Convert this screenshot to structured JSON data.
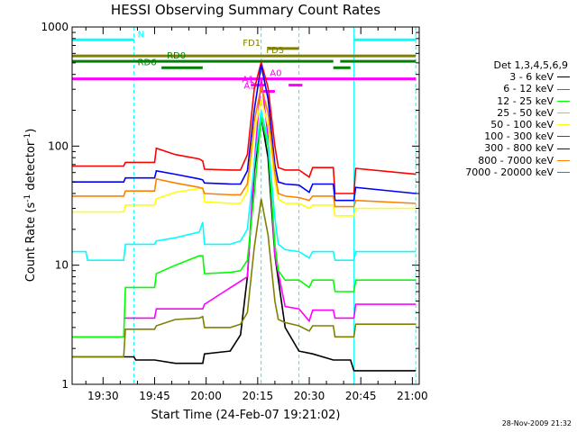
{
  "chart_data": {
    "type": "line",
    "title": "HESSI Observing Summary Count Rates",
    "xlabel": "Start Time (24-Feb-07 19:21:02)",
    "ylabel_main": "Count Rate (s",
    "ylabel_sup1": "-1",
    "ylabel_mid": " detector",
    "ylabel_sup2": "-1",
    "ylabel_end": ")",
    "x_axis_unit": "minutes after 19:21:02",
    "xlim": [
      0,
      101
    ],
    "ylim": [
      1,
      1000
    ],
    "yscale": "log",
    "x_ticks": [
      {
        "v": 9,
        "label": "19:30"
      },
      {
        "v": 24,
        "label": "19:45"
      },
      {
        "v": 39,
        "label": "20:00"
      },
      {
        "v": 54,
        "label": "20:15"
      },
      {
        "v": 69,
        "label": "20:30"
      },
      {
        "v": 84,
        "label": "20:45"
      },
      {
        "v": 99,
        "label": "21:00"
      }
    ],
    "y_ticks": [
      {
        "v": 1,
        "label": "1"
      },
      {
        "v": 10,
        "label": "10"
      },
      {
        "v": 100,
        "label": "100"
      },
      {
        "v": 1000,
        "label": "1000"
      }
    ],
    "grid": false,
    "legend_position": "right",
    "legend_title": "Det 1,3,4,5,6,9",
    "series": [
      {
        "name": "3 - 6 keV",
        "color": "#000000",
        "x": [
          0,
          18,
          18.5,
          24,
          30,
          38,
          38.5,
          46,
          49,
          51,
          53,
          55,
          57,
          59,
          62,
          66,
          70,
          76,
          81,
          82,
          93,
          100
        ],
        "y": [
          1.7,
          1.7,
          1.6,
          1.6,
          1.5,
          1.5,
          1.8,
          1.9,
          2.6,
          8,
          60,
          175,
          80,
          12,
          3,
          1.9,
          1.8,
          1.6,
          1.6,
          1.3,
          1.3,
          1.3
        ]
      },
      {
        "name": "6 - 12 keV",
        "color": "#ff00ff",
        "x": [
          15,
          24,
          24.5,
          38,
          38.5,
          51,
          53,
          55,
          57,
          59,
          62,
          66,
          69,
          70,
          76,
          76.5,
          82,
          82.5,
          100
        ],
        "y": [
          3.6,
          3.6,
          4.3,
          4.3,
          4.7,
          8,
          70,
          375,
          120,
          12,
          4.5,
          4.3,
          3.4,
          4.2,
          4.2,
          3.6,
          3.6,
          4.7,
          4.7
        ]
      },
      {
        "name": "12 - 25 keV",
        "color": "#00ff00",
        "x": [
          0,
          15,
          15.5,
          24,
          24.5,
          30,
          37,
          38,
          38.5,
          46,
          49,
          51,
          53,
          55,
          57,
          59,
          60,
          62,
          66,
          69,
          70,
          76,
          76.5,
          82,
          82.5,
          100
        ],
        "y": [
          2.5,
          2.5,
          6.5,
          6.5,
          8.5,
          10,
          12,
          12,
          8.5,
          8.7,
          9,
          11,
          40,
          175,
          100,
          15,
          9,
          7.5,
          7.5,
          6.5,
          7.5,
          7.5,
          6,
          6,
          7.5,
          7.5
        ]
      },
      {
        "name": "25 - 50 keV",
        "color": "#00ffff",
        "x": [
          0,
          4,
          4.5,
          15,
          15.5,
          24,
          24.5,
          30,
          37,
          38,
          38.5,
          46,
          49,
          51,
          53,
          55,
          57,
          59,
          60,
          62,
          66,
          69,
          70,
          76,
          76.5,
          82,
          82.5,
          100
        ],
        "y": [
          13,
          13,
          11,
          11,
          15,
          15,
          16,
          17,
          19,
          23,
          15,
          15,
          16,
          20,
          70,
          200,
          110,
          25,
          15,
          13.5,
          13,
          11.5,
          13,
          13,
          11,
          11,
          13,
          13
        ]
      },
      {
        "name": "50 - 100 keV",
        "color": "#ffff00",
        "x": [
          0,
          15,
          15.5,
          24,
          24.5,
          30,
          37,
          38,
          38.5,
          46,
          49,
          51,
          53,
          55,
          57,
          59,
          60,
          62,
          66,
          69,
          70,
          76,
          76.5,
          82,
          82.5,
          100
        ],
        "y": [
          28,
          28,
          32,
          32,
          36,
          41,
          44,
          45,
          34,
          33,
          33,
          42,
          130,
          250,
          150,
          50,
          36,
          33,
          33,
          30,
          32,
          32,
          26,
          26,
          30,
          30
        ]
      },
      {
        "name": "100 - 300 keV",
        "color": "#ff0000",
        "x": [
          0,
          15,
          15.5,
          24,
          24.5,
          30,
          37,
          38,
          38.5,
          46,
          49,
          51,
          53,
          55,
          57,
          59,
          60,
          62,
          66,
          69,
          70,
          76,
          76.5,
          82,
          82.5,
          100
        ],
        "y": [
          68,
          68,
          73,
          73,
          96,
          85,
          78,
          75,
          64,
          63,
          63,
          85,
          300,
          505,
          310,
          100,
          66,
          63,
          63,
          55,
          66,
          66,
          40,
          40,
          65,
          58
        ]
      },
      {
        "name": "300 - 800 keV",
        "color": "#0000ff",
        "x": [
          0,
          15,
          15.5,
          24,
          24.5,
          30,
          37,
          38,
          38.5,
          46,
          49,
          51,
          53,
          55,
          57,
          59,
          60,
          62,
          66,
          69,
          70,
          76,
          76.5,
          82,
          82.5,
          100
        ],
        "y": [
          50,
          50,
          54,
          54,
          62,
          58,
          53,
          52,
          49,
          48,
          48,
          62,
          200,
          480,
          250,
          70,
          50,
          48,
          47,
          41,
          48,
          48,
          35,
          35,
          45,
          40
        ]
      },
      {
        "name": "800 - 7000 keV",
        "color": "#ff8000",
        "x": [
          0,
          15,
          15.5,
          24,
          24.5,
          30,
          37,
          38,
          38.5,
          46,
          49,
          51,
          53,
          55,
          57,
          59,
          60,
          62,
          66,
          69,
          70,
          76,
          76.5,
          82,
          82.5,
          100
        ],
        "y": [
          38,
          38,
          42,
          42,
          53,
          49,
          45,
          44,
          40,
          39,
          39,
          48,
          160,
          320,
          190,
          60,
          40,
          38,
          37,
          35,
          38,
          38,
          31,
          31,
          35,
          33
        ]
      },
      {
        "name": "7000 - 20000 keV",
        "color": "#808000",
        "x": [
          0,
          15,
          15.5,
          24,
          24.5,
          30,
          37,
          38,
          38.5,
          46,
          49,
          51,
          53,
          55,
          57,
          59,
          60,
          62,
          66,
          69,
          70,
          76,
          76.5,
          82,
          82.5,
          100
        ],
        "y": [
          1.7,
          1.7,
          2.9,
          2.9,
          3.1,
          3.5,
          3.6,
          3.7,
          3.0,
          3.0,
          3.2,
          4,
          14,
          36,
          18,
          5,
          3.5,
          3.3,
          3.1,
          2.8,
          3.1,
          3.1,
          2.5,
          2.5,
          3.2,
          3.2
        ]
      }
    ],
    "vlines": [
      {
        "x": 0,
        "color": "#00ffff",
        "dash": false
      },
      {
        "x": 18,
        "color": "#00ffff",
        "dash": true
      },
      {
        "x": 55,
        "color": "#00ffff",
        "dash": true
      },
      {
        "x": 66,
        "color": "#00ffff",
        "dash": true
      },
      {
        "x": 82,
        "color": "#00ffff",
        "dash": false
      },
      {
        "x": 100,
        "color": "#00ffff",
        "dash": true
      }
    ],
    "flag_bars": [
      {
        "label": "N",
        "color": "#00ffff",
        "y": 780,
        "segments": [
          [
            0,
            18
          ],
          [
            82,
            100
          ]
        ]
      },
      {
        "label": "FD1",
        "color": "#808000",
        "y": 660,
        "segments": [
          [
            57,
            66
          ]
        ]
      },
      {
        "label": "FD3",
        "color": "#808000",
        "y": 572,
        "segments": [
          [
            0,
            100
          ]
        ]
      },
      {
        "label": "RD0",
        "color": "#008000",
        "y": 515,
        "segments": [
          [
            0,
            76
          ],
          [
            78,
            100
          ]
        ]
      },
      {
        "label": "RD6",
        "color": "#008000",
        "y": 455,
        "segments": [
          [
            26,
            38
          ],
          [
            76,
            81
          ]
        ]
      },
      {
        "label": "A0",
        "color": "#ff00ff",
        "y": 367,
        "segments": [
          [
            0,
            100
          ]
        ]
      },
      {
        "label": "A1",
        "color": "#ff00ff",
        "y": 325,
        "segments": [
          [
            52,
            56
          ],
          [
            63,
            67
          ]
        ]
      },
      {
        "label": "A3",
        "color": "#ff00ff",
        "y": 288,
        "segments": [
          [
            55,
            59
          ]
        ]
      }
    ],
    "timestamp": "28-Nov-2009 21:32"
  }
}
